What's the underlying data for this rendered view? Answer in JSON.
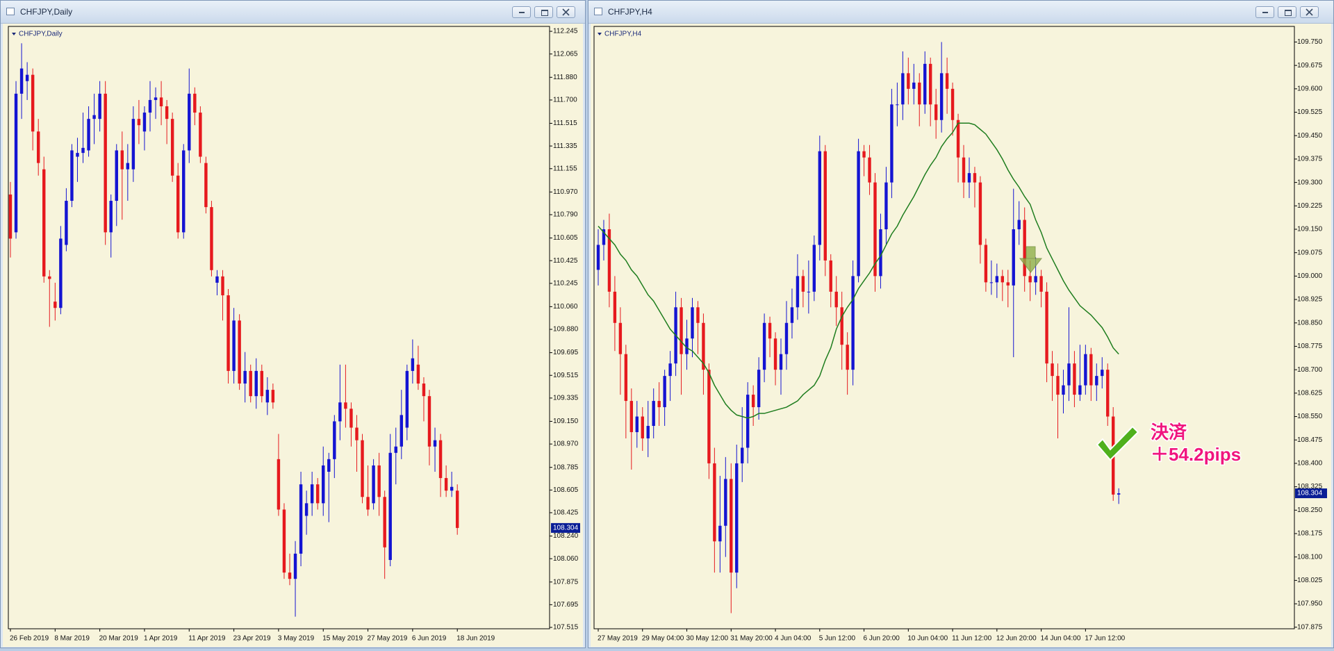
{
  "chart_data": [
    {
      "type": "candlestick",
      "title": "CHFJPY,Daily",
      "background": "#f7f4dc",
      "up_color": "#1414d2",
      "down_color": "#e6191e",
      "axis_color": "#000000",
      "categories": [
        "26 Feb 2019",
        null,
        null,
        null,
        null,
        null,
        null,
        null,
        "8 Mar 2019",
        null,
        null,
        null,
        null,
        null,
        null,
        null,
        "20 Mar 2019",
        null,
        null,
        null,
        null,
        null,
        null,
        null,
        "1 Apr 2019",
        null,
        null,
        null,
        null,
        null,
        null,
        null,
        "11 Apr 2019",
        null,
        null,
        null,
        null,
        null,
        null,
        null,
        "23 Apr 2019",
        null,
        null,
        null,
        null,
        null,
        null,
        null,
        "3 May 2019",
        null,
        null,
        null,
        null,
        null,
        null,
        null,
        "15 May 2019",
        null,
        null,
        null,
        null,
        null,
        null,
        null,
        "27 May 2019",
        null,
        null,
        null,
        null,
        null,
        null,
        null,
        "6 Jun 2019",
        null,
        null,
        null,
        null,
        null,
        null,
        null,
        "18 Jun 2019"
      ],
      "open": [
        110.95,
        110.65,
        111.75,
        111.85,
        111.9,
        111.45,
        111.15,
        110.3,
        110.1,
        110.05,
        110.55,
        110.9,
        111.25,
        111.28,
        111.3,
        111.55,
        111.55,
        111.75,
        110.65,
        110.9,
        111.3,
        111.15,
        111.15,
        111.55,
        111.45,
        111.6,
        111.7,
        111.72,
        111.65,
        111.55,
        111.1,
        110.65,
        111.3,
        111.75,
        111.6,
        111.2,
        110.85,
        110.25,
        110.3,
        110.15,
        109.55,
        109.95,
        109.45,
        109.55,
        109.35,
        109.55,
        109.3,
        109.4,
        108.85,
        108.45,
        107.95,
        107.9,
        108.1,
        108.4,
        108.5,
        108.65,
        108.5,
        108.75,
        108.85,
        109.15,
        109.3,
        109.25,
        109.1,
        109.0,
        108.55,
        108.5,
        108.8,
        108.55,
        108.05,
        108.9,
        108.95,
        109.1,
        109.55,
        109.6,
        109.45,
        109.35,
        108.95,
        109.0,
        108.7,
        108.6,
        108.6
      ],
      "high": [
        111.05,
        111.85,
        112.15,
        112.0,
        111.95,
        111.55,
        111.25,
        110.35,
        110.25,
        110.7,
        111.0,
        111.35,
        111.4,
        111.6,
        111.65,
        111.75,
        111.85,
        111.85,
        110.95,
        111.35,
        111.45,
        111.35,
        111.65,
        111.7,
        111.65,
        111.85,
        111.8,
        111.85,
        111.7,
        111.6,
        111.2,
        111.35,
        111.95,
        111.8,
        111.65,
        111.25,
        110.9,
        110.35,
        110.35,
        110.2,
        110.05,
        110.0,
        109.7,
        109.6,
        109.65,
        109.6,
        109.5,
        109.45,
        109.05,
        108.5,
        108.1,
        108.2,
        108.75,
        108.6,
        108.75,
        108.7,
        108.95,
        108.9,
        109.2,
        109.6,
        109.6,
        109.3,
        109.2,
        109.05,
        108.8,
        108.85,
        108.9,
        108.6,
        109.05,
        109.1,
        109.4,
        109.6,
        109.8,
        109.75,
        109.5,
        109.4,
        109.1,
        109.05,
        108.8,
        108.75,
        108.65
      ],
      "low": [
        110.45,
        110.6,
        111.55,
        111.7,
        111.3,
        111.1,
        110.25,
        109.9,
        109.95,
        110.0,
        110.5,
        110.85,
        111.05,
        111.2,
        111.25,
        111.35,
        111.45,
        110.55,
        110.45,
        110.7,
        110.75,
        110.9,
        111.05,
        111.35,
        111.3,
        111.45,
        111.55,
        111.5,
        111.35,
        111.05,
        110.6,
        110.6,
        111.2,
        111.5,
        111.2,
        110.8,
        110.3,
        110.15,
        109.95,
        109.45,
        109.45,
        109.4,
        109.3,
        109.3,
        109.25,
        109.3,
        109.2,
        109.25,
        108.4,
        107.9,
        107.85,
        107.6,
        108.0,
        108.25,
        108.4,
        108.45,
        108.4,
        108.35,
        108.7,
        109.0,
        109.1,
        108.95,
        108.75,
        108.5,
        108.4,
        108.45,
        108.4,
        107.9,
        108.0,
        108.65,
        108.85,
        109.0,
        109.45,
        109.4,
        109.15,
        108.8,
        108.75,
        108.55,
        108.55,
        108.55,
        108.25
      ],
      "close": [
        110.6,
        111.75,
        111.95,
        111.9,
        111.45,
        111.2,
        110.3,
        110.28,
        110.05,
        110.6,
        110.9,
        111.3,
        111.28,
        111.32,
        111.55,
        111.58,
        111.75,
        110.65,
        110.9,
        111.3,
        111.15,
        111.2,
        111.55,
        111.5,
        111.6,
        111.7,
        111.72,
        111.65,
        111.55,
        111.1,
        110.65,
        111.3,
        111.75,
        111.6,
        111.25,
        110.85,
        110.35,
        110.3,
        110.15,
        109.55,
        109.95,
        109.45,
        109.55,
        109.35,
        109.55,
        109.35,
        109.4,
        109.3,
        108.45,
        107.95,
        107.9,
        108.1,
        108.65,
        108.5,
        108.65,
        108.5,
        108.8,
        108.85,
        109.15,
        109.3,
        109.25,
        109.1,
        109.0,
        108.55,
        108.45,
        108.8,
        108.55,
        108.15,
        108.9,
        108.95,
        109.2,
        109.55,
        109.65,
        109.45,
        109.35,
        108.95,
        109.0,
        108.7,
        108.6,
        108.63,
        108.304
      ],
      "ylim": [
        107.504,
        112.284
      ],
      "yticks": [
        112.245,
        112.065,
        {
          "value": 111.88,
          "label": "111.880"
        },
        {
          "value": 111.7,
          "label": "111.700"
        },
        111.515,
        111.335,
        111.155,
        {
          "value": 110.97,
          "label": "110.970"
        },
        {
          "value": 110.79,
          "label": "110.790"
        },
        110.605,
        110.425,
        110.245,
        {
          "value": 110.06,
          "label": "110.060"
        },
        {
          "value": 109.88,
          "label": "109.880"
        },
        109.695,
        109.515,
        109.335,
        {
          "value": 109.15,
          "label": "109.150"
        },
        {
          "value": 108.97,
          "label": "108.970"
        },
        108.785,
        108.605,
        108.425,
        {
          "value": 108.24,
          "label": "108.240"
        },
        {
          "value": 108.06,
          "label": "108.060"
        },
        107.875,
        107.695,
        107.515
      ],
      "current_price": 108.304,
      "current_price_color": "#0a1e96"
    },
    {
      "type": "candlestick",
      "title": "CHFJPY,H4",
      "background": "#f7f4dc",
      "up_color": "#1414d2",
      "down_color": "#e6191e",
      "axis_color": "#000000",
      "categories": [
        "27 May 2019",
        null,
        null,
        null,
        null,
        null,
        null,
        null,
        "29 May 04:00",
        null,
        null,
        null,
        null,
        null,
        null,
        null,
        "30 May 12:00",
        null,
        null,
        null,
        null,
        null,
        null,
        null,
        "31 May 20:00",
        null,
        null,
        null,
        null,
        null,
        null,
        null,
        "4 Jun 04:00",
        null,
        null,
        null,
        null,
        null,
        null,
        null,
        "5 Jun 12:00",
        null,
        null,
        null,
        null,
        null,
        null,
        null,
        "6 Jun 20:00",
        null,
        null,
        null,
        null,
        null,
        null,
        null,
        "10 Jun 04:00",
        null,
        null,
        null,
        null,
        null,
        null,
        null,
        "11 Jun 12:00",
        null,
        null,
        null,
        null,
        null,
        null,
        null,
        "12 Jun 20:00",
        null,
        null,
        null,
        null,
        null,
        null,
        null,
        "14 Jun 04:00",
        null,
        null,
        null,
        null,
        null,
        null,
        null,
        "17 Jun 12:00",
        null,
        null,
        null,
        null,
        null,
        null
      ],
      "open": [
        109.02,
        109.1,
        109.15,
        108.95,
        108.85,
        108.75,
        108.6,
        108.5,
        108.55,
        108.48,
        108.52,
        108.6,
        108.58,
        108.68,
        108.72,
        108.9,
        108.75,
        108.8,
        108.9,
        108.85,
        108.7,
        108.4,
        108.15,
        108.2,
        108.35,
        108.05,
        108.4,
        108.45,
        108.62,
        108.58,
        108.7,
        108.85,
        108.8,
        108.7,
        108.75,
        108.85,
        108.9,
        109.0,
        108.95,
        108.95,
        109.1,
        109.4,
        109.05,
        108.95,
        108.9,
        108.78,
        108.7,
        109.0,
        109.4,
        109.38,
        109.3,
        109.0,
        109.15,
        109.3,
        109.55,
        109.55,
        109.65,
        109.6,
        109.62,
        109.55,
        109.68,
        109.55,
        109.5,
        109.65,
        109.6,
        109.5,
        109.38,
        109.3,
        109.33,
        109.3,
        109.1,
        108.98,
        108.98,
        109.0,
        108.98,
        108.97,
        109.15,
        109.18,
        109.0,
        108.98,
        109.0,
        108.95,
        108.72,
        108.68,
        108.62,
        108.65,
        108.72,
        108.62,
        108.65,
        108.75,
        108.65,
        108.68,
        108.7,
        108.55,
        108.3
      ],
      "high": [
        109.15,
        109.18,
        109.2,
        109.0,
        108.9,
        108.78,
        108.64,
        108.6,
        108.58,
        108.6,
        108.64,
        108.66,
        108.7,
        108.76,
        108.95,
        108.93,
        108.86,
        108.93,
        108.92,
        108.88,
        108.72,
        108.45,
        108.36,
        108.42,
        108.4,
        108.46,
        108.58,
        108.66,
        108.65,
        108.74,
        108.88,
        108.87,
        108.82,
        108.8,
        108.92,
        108.96,
        109.07,
        109.02,
        109.05,
        109.13,
        109.45,
        109.42,
        109.07,
        109.0,
        108.95,
        108.82,
        109.05,
        109.44,
        109.42,
        109.42,
        109.33,
        109.2,
        109.35,
        109.6,
        109.62,
        109.72,
        109.7,
        109.68,
        109.65,
        109.72,
        109.7,
        109.6,
        109.75,
        109.7,
        109.62,
        109.52,
        109.42,
        109.38,
        109.35,
        109.32,
        109.12,
        109.05,
        109.04,
        109.02,
        109.02,
        109.28,
        109.24,
        109.22,
        109.05,
        109.06,
        109.02,
        108.98,
        108.76,
        108.72,
        108.7,
        108.9,
        108.76,
        108.78,
        108.78,
        108.77,
        108.72,
        108.74,
        108.72,
        108.58,
        108.32
      ],
      "low": [
        108.97,
        109.05,
        108.9,
        108.76,
        108.62,
        108.48,
        108.38,
        108.45,
        108.44,
        108.42,
        108.48,
        108.52,
        108.52,
        108.6,
        108.68,
        108.62,
        108.7,
        108.74,
        108.75,
        108.62,
        108.35,
        108.05,
        108.05,
        108.1,
        107.92,
        108.0,
        108.34,
        108.4,
        108.52,
        108.54,
        108.66,
        108.74,
        108.65,
        108.62,
        108.7,
        108.8,
        108.86,
        108.9,
        108.88,
        108.92,
        109.05,
        109.0,
        108.9,
        108.84,
        108.7,
        108.62,
        108.65,
        108.98,
        109.32,
        109.26,
        108.95,
        108.96,
        109.1,
        109.25,
        109.48,
        109.5,
        109.55,
        109.55,
        109.48,
        109.52,
        109.48,
        109.44,
        109.46,
        109.52,
        109.45,
        109.3,
        109.25,
        109.25,
        109.22,
        109.04,
        108.95,
        108.94,
        108.93,
        108.92,
        108.9,
        108.74,
        109.1,
        108.95,
        108.92,
        108.94,
        108.9,
        108.66,
        108.6,
        108.48,
        108.56,
        108.6,
        108.58,
        108.6,
        108.62,
        108.6,
        108.6,
        108.64,
        108.52,
        108.28,
        108.27
      ],
      "close": [
        109.1,
        109.15,
        108.95,
        108.85,
        108.75,
        108.6,
        108.5,
        108.55,
        108.48,
        108.52,
        108.6,
        108.58,
        108.68,
        108.72,
        108.9,
        108.75,
        108.8,
        108.9,
        108.85,
        108.7,
        108.4,
        108.15,
        108.2,
        108.35,
        108.05,
        108.4,
        108.45,
        108.62,
        108.58,
        108.7,
        108.85,
        108.8,
        108.7,
        108.75,
        108.85,
        108.9,
        109.0,
        108.95,
        108.95,
        109.1,
        109.4,
        109.05,
        108.95,
        108.9,
        108.78,
        108.7,
        109.0,
        109.4,
        109.38,
        109.3,
        109.0,
        109.15,
        109.3,
        109.55,
        109.55,
        109.65,
        109.6,
        109.62,
        109.55,
        109.68,
        109.55,
        109.5,
        109.65,
        109.6,
        109.5,
        109.38,
        109.3,
        109.33,
        109.3,
        109.1,
        108.98,
        108.98,
        109.0,
        108.98,
        108.97,
        109.15,
        109.18,
        109.0,
        108.98,
        109.0,
        108.95,
        108.72,
        108.68,
        108.62,
        108.65,
        108.72,
        108.62,
        108.65,
        108.75,
        108.65,
        108.68,
        108.7,
        108.55,
        108.3,
        108.304
      ],
      "moving_average": {
        "color": "#1e7d1e",
        "values": [
          109.16,
          109.14,
          109.12,
          109.1,
          109.07,
          109.05,
          109.02,
          109.0,
          108.97,
          108.94,
          108.92,
          108.89,
          108.86,
          108.83,
          108.81,
          108.79,
          108.77,
          108.76,
          108.74,
          108.72,
          108.69,
          108.65,
          108.62,
          108.59,
          108.57,
          108.555,
          108.55,
          108.545,
          108.55,
          108.56,
          108.56,
          108.565,
          108.57,
          108.575,
          108.58,
          108.59,
          108.6,
          108.62,
          108.635,
          108.65,
          108.68,
          108.73,
          108.77,
          108.83,
          108.87,
          108.9,
          108.925,
          108.96,
          108.985,
          109.01,
          109.04,
          109.065,
          109.1,
          109.135,
          109.16,
          109.195,
          109.225,
          109.255,
          109.29,
          109.325,
          109.355,
          109.38,
          109.415,
          109.44,
          109.46,
          109.49,
          109.49,
          109.49,
          109.485,
          109.47,
          109.455,
          109.43,
          109.405,
          109.375,
          109.34,
          109.31,
          109.285,
          109.255,
          109.23,
          109.18,
          109.14,
          109.09,
          109.055,
          109.02,
          108.985,
          108.955,
          108.93,
          108.905,
          108.89,
          108.875,
          108.855,
          108.835,
          108.805,
          108.77,
          108.75
        ]
      },
      "ylim": [
        107.87,
        109.8
      ],
      "yticks": [
        {
          "value": 109.75,
          "label": "109.750"
        },
        109.675,
        {
          "value": 109.6,
          "label": "109.600"
        },
        109.525,
        {
          "value": 109.45,
          "label": "109.450"
        },
        109.375,
        {
          "value": 109.3,
          "label": "109.300"
        },
        109.225,
        {
          "value": 109.15,
          "label": "109.150"
        },
        109.075,
        {
          "value": 109,
          "label": "109.000"
        },
        108.925,
        {
          "value": 108.85,
          "label": "108.850"
        },
        108.775,
        {
          "value": 108.7,
          "label": "108.700"
        },
        108.625,
        {
          "value": 108.55,
          "label": "108.550"
        },
        108.475,
        {
          "value": 108.4,
          "label": "108.400"
        },
        108.325,
        {
          "value": 108.25,
          "label": "108.250"
        },
        108.175,
        {
          "value": 108.1,
          "label": "108.100"
        },
        108.025,
        {
          "value": 107.95,
          "label": "107.950"
        },
        107.875
      ],
      "current_price": 108.304,
      "current_price_color": "#0a1e96",
      "annotations": [
        "決済",
        "＋54.2pips"
      ]
    }
  ]
}
